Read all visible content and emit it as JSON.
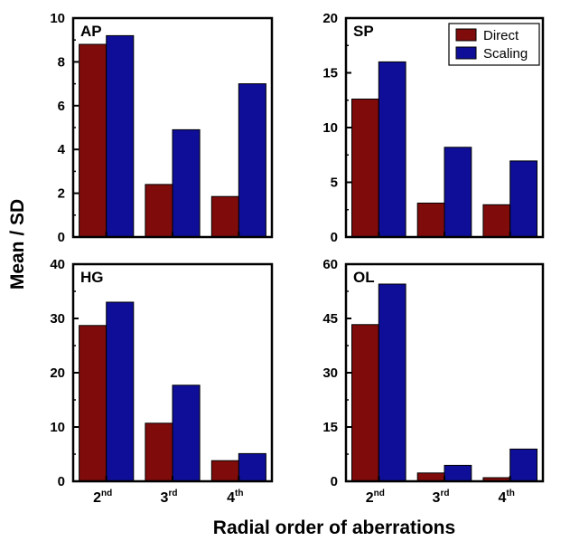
{
  "figure": {
    "ylabel": "Mean / SD",
    "xlabel": "Radial order of aberrations"
  },
  "colors": {
    "direct": "#7f0b0b",
    "scaling": "#0e0e99"
  },
  "legend": {
    "items": [
      "Direct",
      "Scaling"
    ]
  },
  "chart_data": [
    {
      "type": "bar",
      "title": "AP",
      "categories": [
        {
          "num": "2",
          "sup": "nd"
        },
        {
          "num": "3",
          "sup": "rd"
        },
        {
          "num": "4",
          "sup": "th"
        }
      ],
      "series": [
        {
          "name": "Direct",
          "values": [
            8.8,
            2.4,
            1.85
          ]
        },
        {
          "name": "Scaling",
          "values": [
            9.2,
            4.9,
            7.0
          ]
        }
      ],
      "ylim": [
        0,
        10
      ],
      "yticks": [
        "0",
        "2",
        "4",
        "6",
        "8",
        "10"
      ]
    },
    {
      "type": "bar",
      "title": "SP",
      "categories": [
        {
          "num": "2",
          "sup": "nd"
        },
        {
          "num": "3",
          "sup": "rd"
        },
        {
          "num": "4",
          "sup": "th"
        }
      ],
      "series": [
        {
          "name": "Direct",
          "values": [
            12.6,
            3.1,
            2.95
          ]
        },
        {
          "name": "Scaling",
          "values": [
            16.0,
            8.2,
            6.95
          ]
        }
      ],
      "ylim": [
        0,
        20
      ],
      "yticks": [
        "0",
        "5",
        "10",
        "15",
        "20"
      ],
      "legend": "top-right"
    },
    {
      "type": "bar",
      "title": "HG",
      "categories": [
        {
          "num": "2",
          "sup": "nd"
        },
        {
          "num": "3",
          "sup": "rd"
        },
        {
          "num": "4",
          "sup": "th"
        }
      ],
      "series": [
        {
          "name": "Direct",
          "values": [
            28.7,
            10.7,
            3.8
          ]
        },
        {
          "name": "Scaling",
          "values": [
            33.0,
            17.7,
            5.1
          ]
        }
      ],
      "ylim": [
        0,
        40
      ],
      "yticks": [
        "0",
        "10",
        "20",
        "30",
        "40"
      ]
    },
    {
      "type": "bar",
      "title": "OL",
      "categories": [
        {
          "num": "2",
          "sup": "nd"
        },
        {
          "num": "3",
          "sup": "rd"
        },
        {
          "num": "4",
          "sup": "th"
        }
      ],
      "series": [
        {
          "name": "Direct",
          "values": [
            43.3,
            2.3,
            1.0
          ]
        },
        {
          "name": "Scaling",
          "values": [
            54.5,
            4.4,
            8.9
          ]
        }
      ],
      "ylim": [
        0,
        60
      ],
      "yticks": [
        "0",
        "15",
        "30",
        "45",
        "60"
      ]
    }
  ]
}
